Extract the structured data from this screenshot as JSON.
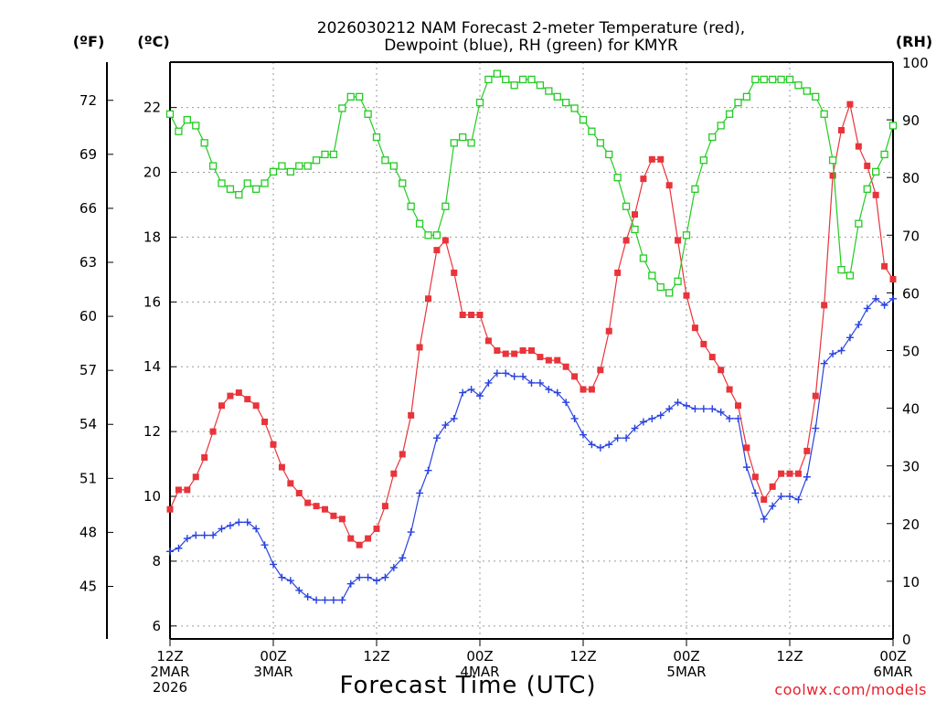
{
  "chart_data": {
    "type": "line",
    "title_line1": "2026030212 NAM Forecast 2-meter Temperature (red),",
    "title_line2": "Dewpoint (blue), RH (green) for KMYR",
    "xlabel": "Forecast Time (UTC)",
    "credit": "coolwx.com/models",
    "units": {
      "fahrenheit": "(ºF)",
      "celsius": "(ºC)",
      "rh": "(RH)"
    },
    "hours_range": [
      0,
      84
    ],
    "celsius_range": [
      5.6,
      23.4
    ],
    "rh_range": [
      0,
      100
    ],
    "celsius_ticks": [
      6,
      8,
      10,
      12,
      14,
      16,
      18,
      20,
      22
    ],
    "fahrenheit_ticks": [
      45,
      48,
      51,
      54,
      57,
      60,
      63,
      66,
      69,
      72
    ],
    "rh_ticks": [
      0,
      10,
      20,
      30,
      40,
      50,
      60,
      70,
      80,
      90,
      100
    ],
    "x_ticks": [
      {
        "hour": 0,
        "lines": [
          "12Z",
          "2MAR",
          "2026"
        ]
      },
      {
        "hour": 12,
        "lines": [
          "00Z",
          "3MAR"
        ]
      },
      {
        "hour": 24,
        "lines": [
          "12Z"
        ]
      },
      {
        "hour": 36,
        "lines": [
          "00Z",
          "4MAR"
        ]
      },
      {
        "hour": 48,
        "lines": [
          "12Z"
        ]
      },
      {
        "hour": 60,
        "lines": [
          "00Z",
          "5MAR"
        ]
      },
      {
        "hour": 72,
        "lines": [
          "12Z"
        ]
      },
      {
        "hour": 84,
        "lines": [
          "00Z",
          "6MAR"
        ]
      }
    ],
    "series": [
      {
        "name": "Temperature",
        "color": "#e8343a",
        "marker": "filled-square",
        "x": [
          0,
          1,
          2,
          3,
          4,
          5,
          6,
          7,
          8,
          9,
          10,
          11,
          12,
          13,
          14,
          15,
          16,
          17,
          18,
          19,
          20,
          21,
          22,
          23,
          24,
          25,
          26,
          27,
          28,
          29,
          30,
          31,
          32,
          33,
          34,
          35,
          36,
          37,
          38,
          39,
          40,
          41,
          42,
          43,
          44,
          45,
          46,
          47,
          48,
          49,
          50,
          51,
          52,
          53,
          54,
          55,
          56,
          57,
          58,
          59,
          60,
          61,
          62,
          63,
          64,
          65,
          66,
          67,
          68,
          69,
          70,
          71,
          72,
          73,
          74,
          75,
          76,
          77,
          78,
          79,
          80,
          81,
          82,
          83,
          84
        ],
        "values": [
          9.6,
          10.2,
          10.2,
          10.6,
          11.2,
          12.0,
          12.8,
          13.1,
          13.2,
          13.0,
          12.8,
          12.3,
          11.6,
          10.9,
          10.4,
          10.1,
          9.8,
          9.7,
          9.6,
          9.4,
          9.3,
          8.7,
          8.5,
          8.7,
          9.0,
          9.7,
          10.7,
          11.3,
          12.5,
          14.6,
          16.1,
          17.6,
          17.9,
          16.9,
          15.6,
          15.6,
          15.6,
          14.8,
          14.5,
          14.4,
          14.4,
          14.5,
          14.5,
          14.3,
          14.2,
          14.2,
          14.0,
          13.7,
          13.3,
          13.3,
          13.9,
          15.1,
          16.9,
          17.9,
          18.7,
          19.8,
          20.4,
          20.4,
          19.6,
          17.9,
          16.2,
          15.2,
          14.7,
          14.3,
          13.9,
          13.3,
          12.8,
          11.5,
          10.6,
          9.9,
          10.3,
          10.7,
          10.7,
          10.7,
          11.4,
          13.1,
          15.9,
          19.9,
          21.3,
          22.1,
          20.8,
          20.2,
          19.3,
          17.1,
          16.7
        ]
      },
      {
        "name": "Dewpoint",
        "color": "#2942e0",
        "marker": "plus",
        "x": [
          0,
          1,
          2,
          3,
          4,
          5,
          6,
          7,
          8,
          9,
          10,
          11,
          12,
          13,
          14,
          15,
          16,
          17,
          18,
          19,
          20,
          21,
          22,
          23,
          24,
          25,
          26,
          27,
          28,
          29,
          30,
          31,
          32,
          33,
          34,
          35,
          36,
          37,
          38,
          39,
          40,
          41,
          42,
          43,
          44,
          45,
          46,
          47,
          48,
          49,
          50,
          51,
          52,
          53,
          54,
          55,
          56,
          57,
          58,
          59,
          60,
          61,
          62,
          63,
          64,
          65,
          66,
          67,
          68,
          69,
          70,
          71,
          72,
          73,
          74,
          75,
          76,
          77,
          78,
          79,
          80,
          81,
          82,
          83,
          84
        ],
        "values": [
          8.3,
          8.4,
          8.7,
          8.8,
          8.8,
          8.8,
          9.0,
          9.1,
          9.2,
          9.2,
          9.0,
          8.5,
          7.9,
          7.5,
          7.4,
          7.1,
          6.9,
          6.8,
          6.8,
          6.8,
          6.8,
          7.3,
          7.5,
          7.5,
          7.4,
          7.5,
          7.8,
          8.1,
          8.9,
          10.1,
          10.8,
          11.8,
          12.2,
          12.4,
          13.2,
          13.3,
          13.1,
          13.5,
          13.8,
          13.8,
          13.7,
          13.7,
          13.5,
          13.5,
          13.3,
          13.2,
          12.9,
          12.4,
          11.9,
          11.6,
          11.5,
          11.6,
          11.8,
          11.8,
          12.1,
          12.3,
          12.4,
          12.5,
          12.7,
          12.9,
          12.8,
          12.7,
          12.7,
          12.7,
          12.6,
          12.4,
          12.4,
          10.9,
          10.1,
          9.3,
          9.7,
          10.0,
          10.0,
          9.9,
          10.6,
          12.1,
          14.1,
          14.4,
          14.5,
          14.9,
          15.3,
          15.8,
          16.1,
          15.9,
          16.1
        ]
      },
      {
        "name": "RH",
        "axis": "rh",
        "color": "#22cc22",
        "marker": "open-square",
        "x": [
          0,
          1,
          2,
          3,
          4,
          5,
          6,
          7,
          8,
          9,
          10,
          11,
          12,
          13,
          14,
          15,
          16,
          17,
          18,
          19,
          20,
          21,
          22,
          23,
          24,
          25,
          26,
          27,
          28,
          29,
          30,
          31,
          32,
          33,
          34,
          35,
          36,
          37,
          38,
          39,
          40,
          41,
          42,
          43,
          44,
          45,
          46,
          47,
          48,
          49,
          50,
          51,
          52,
          53,
          54,
          55,
          56,
          57,
          58,
          59,
          60,
          61,
          62,
          63,
          64,
          65,
          66,
          67,
          68,
          69,
          70,
          71,
          72,
          73,
          74,
          75,
          76,
          77,
          78,
          79,
          80,
          81,
          82,
          83,
          84
        ],
        "values": [
          91,
          88,
          90,
          89,
          86,
          82,
          79,
          78,
          77,
          79,
          78,
          79,
          81,
          82,
          81,
          82,
          82,
          83,
          84,
          84,
          92,
          94,
          94,
          91,
          87,
          83,
          82,
          79,
          75,
          72,
          70,
          70,
          75,
          86,
          87,
          86,
          93,
          97,
          98,
          97,
          96,
          97,
          97,
          96,
          95,
          94,
          93,
          92,
          90,
          88,
          86,
          84,
          80,
          75,
          71,
          66,
          63,
          61,
          60,
          62,
          70,
          78,
          83,
          87,
          89,
          91,
          93,
          94,
          97,
          97,
          97,
          97,
          97,
          96,
          95,
          94,
          91,
          83,
          64,
          63,
          72,
          78,
          81,
          84,
          89
        ]
      }
    ]
  }
}
